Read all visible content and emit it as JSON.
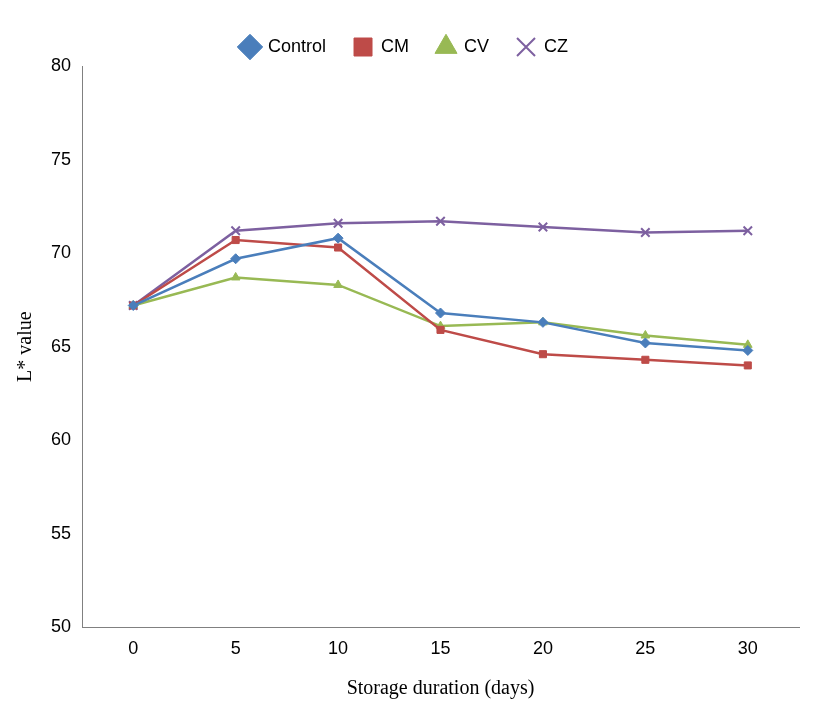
{
  "chart_data": {
    "type": "line",
    "x_label": "Storage duration (days)",
    "y_label": "L* value",
    "categories": [
      "0",
      "5",
      "10",
      "15",
      "20",
      "25",
      "30"
    ],
    "series": [
      {
        "name": "Control",
        "color": "#4a7ebb",
        "marker": "diamond",
        "values": [
          67.2,
          69.7,
          70.8,
          66.8,
          66.3,
          65.2,
          64.8
        ]
      },
      {
        "name": "CM",
        "color": "#be4b48",
        "marker": "square",
        "values": [
          67.2,
          70.7,
          70.3,
          65.9,
          64.6,
          64.3,
          64.0
        ]
      },
      {
        "name": "CV",
        "color": "#98b954",
        "marker": "triangle",
        "values": [
          67.2,
          68.7,
          68.3,
          66.1,
          66.3,
          65.6,
          65.1
        ]
      },
      {
        "name": "CZ",
        "color": "#7d60a0",
        "marker": "x",
        "values": [
          67.2,
          71.2,
          71.6,
          71.7,
          71.4,
          71.1,
          71.2
        ]
      }
    ],
    "ylim": [
      50,
      80
    ],
    "yticks": [
      50,
      55,
      60,
      65,
      70,
      75,
      80
    ],
    "grid": false,
    "legend": "top"
  }
}
